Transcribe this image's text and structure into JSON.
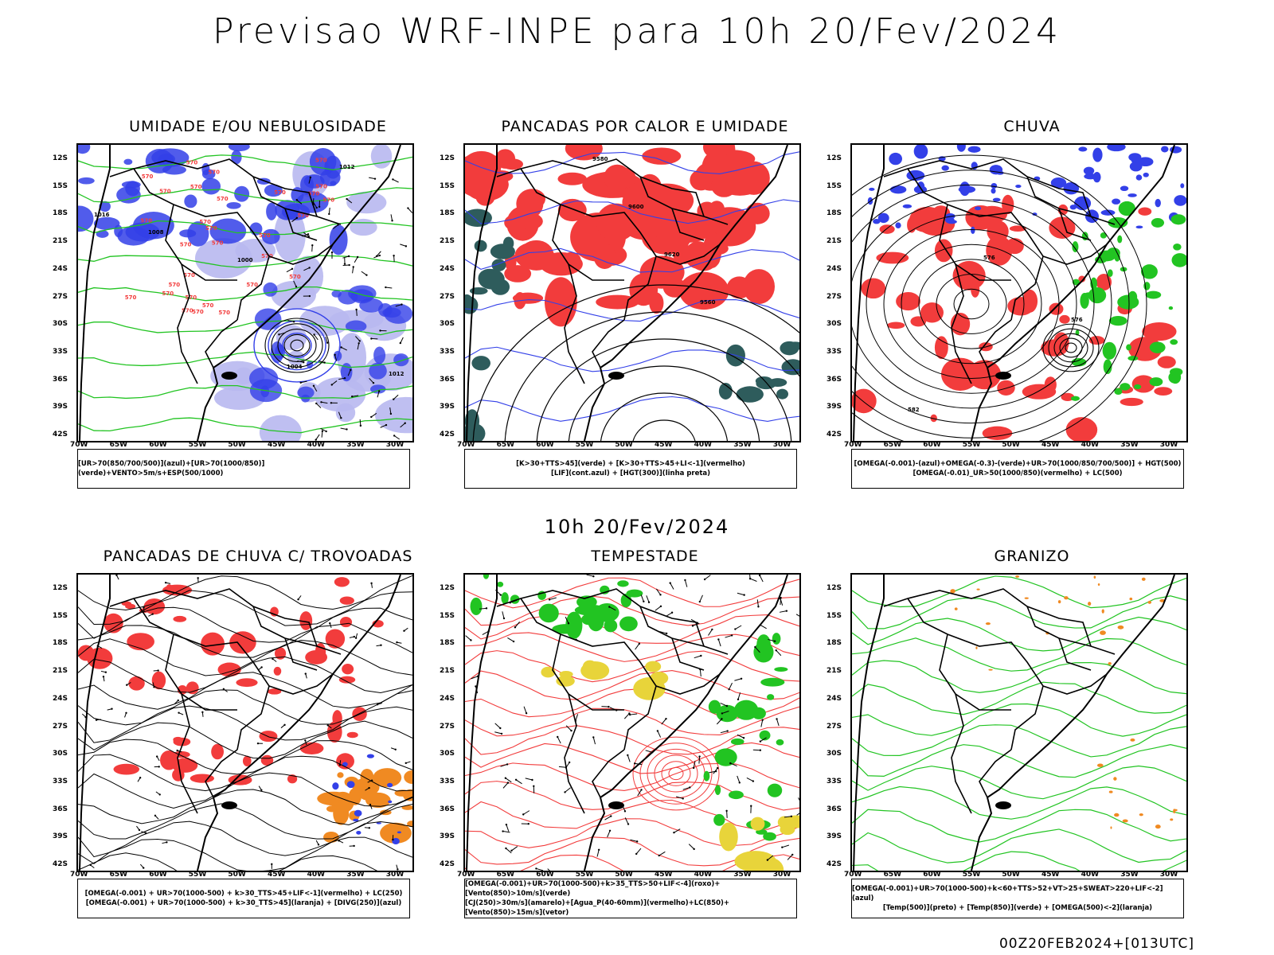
{
  "main_title": "Previsao WRF-INPE  para 10h 20/Fev/2024",
  "mid_title": "10h 20/Fev/2024",
  "footer": "00Z20FEB2024+[013UTC]",
  "lat_labels": [
    "12S",
    "15S",
    "18S",
    "21S",
    "24S",
    "27S",
    "30S",
    "33S",
    "36S",
    "39S",
    "42S"
  ],
  "lon_labels": [
    "70W",
    "65W",
    "60W",
    "55W",
    "50W",
    "45W",
    "40W",
    "35W",
    "30W"
  ],
  "colors": {
    "blue": "#3340e8",
    "green": "#22c422",
    "red": "#f23c3c",
    "orange": "#f08a22",
    "yellow": "#e8d43a",
    "teal": "#2e5c5c",
    "lavender": "#b8b8f0"
  },
  "panels": [
    {
      "title": "UMIDADE E/OU NEBULOSIDADE",
      "legend": [
        "[UR>70(850/700/500)](azul)+[UR>70(1000/850)](verde)+VENTO>5m/s+ESP(500/1000)"
      ],
      "contours": [
        "1012",
        "1008",
        "1004",
        "1000",
        "1016",
        "576",
        "570"
      ]
    },
    {
      "title": "PANCADAS POR CALOR E UMIDADE",
      "legend": [
        "[K>30+TTS>45](verde) + [K>30+TTS>45+LI<-1](vermelho)",
        "[LIF](cont.azul) + [HGT(300)](linha preta)"
      ],
      "contours": [
        "9580",
        "9600",
        "9620",
        "9560"
      ]
    },
    {
      "title": "CHUVA",
      "legend": [
        "[OMEGA(-0.001)-(azul)+OMEGA(-0.3)-(verde)+UR>70(1000/850/700/500)] + HGT(500)",
        "[OMEGA(-0.01)_UR>50(1000/850)(vermelho) + LC(500)"
      ],
      "contours": [
        "576",
        "582"
      ]
    },
    {
      "title": "PANCADAS DE CHUVA C/ TROVOADAS",
      "legend": [
        "[OMEGA(-0.001) + UR>70(1000-500) + k>30_TTS>45+LIF<-1](vermelho) + LC(250)",
        "[OMEGA(-0.001) + UR>70(1000-500) + k>30_TTS>45](laranja) + [DIVG(250)](azul)"
      ],
      "contours": []
    },
    {
      "title": "TEMPESTADE",
      "legend": [
        "[OMEGA(-0.001)+UR>70(1000-500)+k>35_TTS>50+LIF<-4](roxo)+[Vento(850)>10m/s](verde)",
        "[CJ(250)>30m/s](amarelo)+[Agua_P(40-60mm)](vermelho)+LC(850)+[Vento(850)>15m/s](vetor)"
      ],
      "contours": []
    },
    {
      "title": "GRANIZO",
      "legend": [
        "[OMEGA(-0.001)+UR>70(1000-500)+k<60+TTS>52+VT>25+SWEAT>220+LIF<-2](azul)",
        "[Temp(500)](preto) + [Temp(850)](verde) + [OMEGA(500)<-2](laranja)"
      ],
      "contours": []
    }
  ]
}
